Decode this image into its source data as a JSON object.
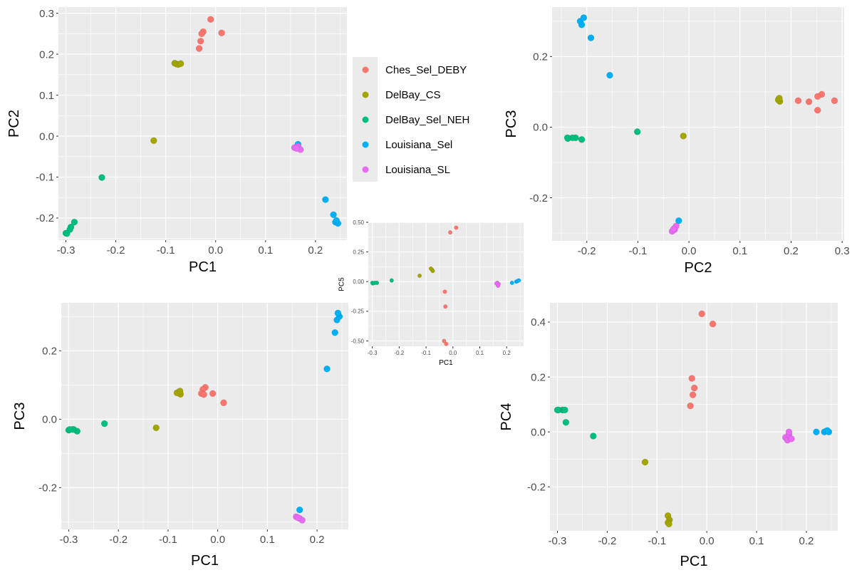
{
  "legend": {
    "entries": [
      "Ches_Sel_DEBY",
      "DelBay_CS",
      "DelBay_Sel_NEH",
      "Louisiana_Sel",
      "Louisiana_SL"
    ]
  },
  "colors": {
    "Ches_Sel_DEBY": "#F8766D",
    "DelBay_CS": "#A3A500",
    "DelBay_Sel_NEH": "#00BF7D",
    "Louisiana_Sel": "#00B0F6",
    "Louisiana_SL": "#E76BF3",
    "panel_bg": "#EBEBEB",
    "grid": "#FFFFFF"
  },
  "chart_data": [
    {
      "id": "pc1-pc2",
      "type": "scatter",
      "xlabel": "PC1",
      "ylabel": "PC2",
      "xlim": [
        -0.315,
        0.263
      ],
      "ylim": [
        -0.254,
        0.315
      ],
      "xticks": [
        -0.3,
        -0.2,
        -0.1,
        0.0,
        0.1,
        0.2
      ],
      "xtick_labels": [
        "-0.3",
        "-0.2",
        "-0.1",
        "0.0",
        "0.1",
        "0.2"
      ],
      "yticks": [
        -0.2,
        -0.1,
        0.0,
        0.1,
        0.2,
        0.3
      ],
      "ytick_labels": [
        "-0.2",
        "-0.1",
        "0.0",
        "0.1",
        "0.2",
        "0.3"
      ],
      "grid": true,
      "series": [
        {
          "name": "Ches_Sel_DEBY",
          "points": [
            [
              -0.01,
              0.285
            ],
            [
              0.012,
              0.252
            ],
            [
              -0.025,
              0.255
            ],
            [
              -0.028,
              0.25
            ],
            [
              -0.03,
              0.232
            ],
            [
              -0.033,
              0.214
            ]
          ]
        },
        {
          "name": "DelBay_CS",
          "points": [
            [
              -0.082,
              0.178
            ],
            [
              -0.078,
              0.176
            ],
            [
              -0.075,
              0.175
            ],
            [
              -0.07,
              0.177
            ],
            [
              -0.124,
              -0.011
            ]
          ]
        },
        {
          "name": "DelBay_Sel_NEH",
          "points": [
            [
              -0.228,
              -0.101
            ],
            [
              -0.283,
              -0.21
            ],
            [
              -0.29,
              -0.222
            ],
            [
              -0.292,
              -0.228
            ],
            [
              -0.3,
              -0.237
            ],
            [
              -0.298,
              -0.238
            ]
          ]
        },
        {
          "name": "Louisiana_Sel",
          "points": [
            [
              0.22,
              -0.155
            ],
            [
              0.236,
              -0.192
            ],
            [
              0.24,
              -0.21
            ],
            [
              0.245,
              -0.213
            ],
            [
              0.242,
              -0.206
            ],
            [
              0.165,
              -0.02
            ]
          ]
        },
        {
          "name": "Louisiana_SL",
          "points": [
            [
              0.158,
              -0.028
            ],
            [
              0.165,
              -0.025
            ],
            [
              0.17,
              -0.033
            ],
            [
              0.162,
              -0.03
            ]
          ]
        }
      ]
    },
    {
      "id": "pc2-pc3",
      "type": "scatter",
      "xlabel": "PC2",
      "ylabel": "PC3",
      "xlim": [
        -0.268,
        0.304
      ],
      "ylim": [
        -0.322,
        0.34
      ],
      "xticks": [
        -0.2,
        -0.1,
        0.0,
        0.1,
        0.2,
        0.3
      ],
      "xtick_labels": [
        "-0.2",
        "-0.1",
        "0.0",
        "0.1",
        "0.2",
        "0.3"
      ],
      "yticks": [
        -0.2,
        0.0,
        0.2
      ],
      "ytick_labels": [
        "-0.2",
        "0.0",
        "0.2"
      ],
      "grid": true,
      "series": [
        {
          "name": "Ches_Sel_DEBY",
          "points": [
            [
              0.285,
              0.075
            ],
            [
              0.26,
              0.093
            ],
            [
              0.252,
              0.087
            ],
            [
              0.235,
              0.072
            ],
            [
              0.214,
              0.075
            ],
            [
              0.252,
              0.048
            ]
          ]
        },
        {
          "name": "DelBay_CS",
          "points": [
            [
              0.176,
              0.08
            ],
            [
              0.178,
              0.073
            ],
            [
              0.175,
              0.077
            ],
            [
              0.177,
              0.082
            ],
            [
              -0.011,
              -0.025
            ]
          ]
        },
        {
          "name": "DelBay_Sel_NEH",
          "points": [
            [
              -0.101,
              -0.013
            ],
            [
              -0.21,
              -0.035
            ],
            [
              -0.222,
              -0.03
            ],
            [
              -0.228,
              -0.03
            ],
            [
              -0.237,
              -0.032
            ],
            [
              -0.238,
              -0.03
            ]
          ]
        },
        {
          "name": "Louisiana_Sel",
          "points": [
            [
              -0.155,
              0.147
            ],
            [
              -0.192,
              0.253
            ],
            [
              -0.21,
              0.29
            ],
            [
              -0.213,
              0.3
            ],
            [
              -0.206,
              0.31
            ],
            [
              -0.02,
              -0.265
            ]
          ]
        },
        {
          "name": "Louisiana_SL",
          "points": [
            [
              -0.028,
              -0.29
            ],
            [
              -0.025,
              -0.28
            ],
            [
              -0.033,
              -0.295
            ],
            [
              -0.03,
              -0.288
            ]
          ]
        }
      ]
    },
    {
      "id": "pc1-pc5",
      "type": "scatter",
      "xlabel": "PC1",
      "ylabel": "PC5",
      "xlim": [
        -0.315,
        0.263
      ],
      "ylim": [
        -0.545,
        0.5
      ],
      "xticks": [
        -0.3,
        -0.2,
        -0.1,
        0.0,
        0.1,
        0.2
      ],
      "xtick_labels": [
        "-0.3",
        "-0.2",
        "-0.1",
        "0.0",
        "0.1",
        "0.2"
      ],
      "yticks": [
        -0.5,
        -0.25,
        0.0,
        0.25,
        0.5
      ],
      "ytick_labels": [
        "-0.50",
        "-0.25",
        "0.00",
        "0.25",
        "0.50"
      ],
      "grid": true,
      "series": [
        {
          "name": "Ches_Sel_DEBY",
          "points": [
            [
              0.012,
              0.455
            ],
            [
              -0.01,
              0.415
            ],
            [
              -0.03,
              -0.085
            ],
            [
              -0.028,
              -0.21
            ],
            [
              -0.033,
              -0.5
            ],
            [
              -0.025,
              -0.525
            ]
          ]
        },
        {
          "name": "DelBay_CS",
          "points": [
            [
              -0.078,
              0.1
            ],
            [
              -0.075,
              0.09
            ],
            [
              -0.082,
              0.11
            ],
            [
              -0.124,
              0.05
            ]
          ]
        },
        {
          "name": "DelBay_Sel_NEH",
          "points": [
            [
              -0.228,
              0.01
            ],
            [
              -0.283,
              -0.01
            ],
            [
              -0.29,
              -0.01
            ],
            [
              -0.298,
              -0.015
            ],
            [
              -0.3,
              -0.01
            ]
          ]
        },
        {
          "name": "Louisiana_Sel",
          "points": [
            [
              0.22,
              -0.01
            ],
            [
              0.236,
              0.0
            ],
            [
              0.24,
              0.005
            ],
            [
              0.245,
              0.01
            ]
          ]
        },
        {
          "name": "Louisiana_SL",
          "points": [
            [
              0.165,
              -0.01
            ],
            [
              0.17,
              -0.02
            ],
            [
              0.162,
              -0.015
            ],
            [
              0.168,
              -0.035
            ]
          ]
        }
      ]
    },
    {
      "id": "pc1-pc3",
      "type": "scatter",
      "xlabel": "PC1",
      "ylabel": "PC3",
      "xlim": [
        -0.315,
        0.263
      ],
      "ylim": [
        -0.322,
        0.34
      ],
      "xticks": [
        -0.3,
        -0.2,
        -0.1,
        0.0,
        0.1,
        0.2
      ],
      "xtick_labels": [
        "-0.3",
        "-0.2",
        "-0.1",
        "0.0",
        "0.1",
        "0.2"
      ],
      "yticks": [
        -0.2,
        0.0,
        0.2
      ],
      "ytick_labels": [
        "-0.2",
        "0.0",
        "0.2"
      ],
      "grid": true,
      "series": [
        {
          "name": "Ches_Sel_DEBY",
          "points": [
            [
              -0.025,
              0.093
            ],
            [
              -0.03,
              0.087
            ],
            [
              -0.033,
              0.075
            ],
            [
              -0.028,
              0.072
            ],
            [
              -0.01,
              0.075
            ],
            [
              0.012,
              0.048
            ]
          ]
        },
        {
          "name": "DelBay_CS",
          "points": [
            [
              -0.078,
              0.08
            ],
            [
              -0.075,
              0.073
            ],
            [
              -0.082,
              0.077
            ],
            [
              -0.076,
              0.082
            ],
            [
              -0.124,
              -0.025
            ]
          ]
        },
        {
          "name": "DelBay_Sel_NEH",
          "points": [
            [
              -0.228,
              -0.013
            ],
            [
              -0.283,
              -0.035
            ],
            [
              -0.29,
              -0.03
            ],
            [
              -0.292,
              -0.03
            ],
            [
              -0.3,
              -0.032
            ],
            [
              -0.298,
              -0.03
            ]
          ]
        },
        {
          "name": "Louisiana_Sel",
          "points": [
            [
              0.22,
              0.147
            ],
            [
              0.236,
              0.253
            ],
            [
              0.24,
              0.29
            ],
            [
              0.245,
              0.3
            ],
            [
              0.242,
              0.31
            ],
            [
              0.165,
              -0.265
            ]
          ]
        },
        {
          "name": "Louisiana_SL",
          "points": [
            [
              0.158,
              -0.285
            ],
            [
              0.165,
              -0.29
            ],
            [
              0.17,
              -0.295
            ],
            [
              0.162,
              -0.288
            ]
          ]
        }
      ]
    },
    {
      "id": "pc1-pc4",
      "type": "scatter",
      "xlabel": "PC1",
      "ylabel": "PC4",
      "xlim": [
        -0.315,
        0.263
      ],
      "ylim": [
        -0.36,
        0.47
      ],
      "xticks": [
        -0.3,
        -0.2,
        -0.1,
        0.0,
        0.1,
        0.2
      ],
      "xtick_labels": [
        "-0.3",
        "-0.2",
        "-0.1",
        "0.0",
        "0.1",
        "0.2"
      ],
      "yticks": [
        -0.2,
        0.0,
        0.2,
        0.4
      ],
      "ytick_labels": [
        "-0.2",
        "0.0",
        "0.2",
        "0.4"
      ],
      "grid": true,
      "series": [
        {
          "name": "Ches_Sel_DEBY",
          "points": [
            [
              -0.01,
              0.43
            ],
            [
              0.012,
              0.393
            ],
            [
              -0.03,
              0.195
            ],
            [
              -0.025,
              0.16
            ],
            [
              -0.028,
              0.135
            ],
            [
              -0.033,
              0.095
            ]
          ]
        },
        {
          "name": "DelBay_CS",
          "points": [
            [
              -0.124,
              -0.11
            ],
            [
              -0.078,
              -0.305
            ],
            [
              -0.075,
              -0.32
            ],
            [
              -0.078,
              -0.33
            ],
            [
              -0.076,
              -0.335
            ]
          ]
        },
        {
          "name": "DelBay_Sel_NEH",
          "points": [
            [
              -0.228,
              -0.015
            ],
            [
              -0.283,
              0.035
            ],
            [
              -0.29,
              0.08
            ],
            [
              -0.298,
              0.08
            ],
            [
              -0.3,
              0.08
            ],
            [
              -0.285,
              0.08
            ]
          ]
        },
        {
          "name": "Louisiana_Sel",
          "points": [
            [
              0.22,
              0.0
            ],
            [
              0.236,
              0.0
            ],
            [
              0.24,
              0.003
            ],
            [
              0.245,
              0.0
            ],
            [
              0.242,
              0.005
            ]
          ]
        },
        {
          "name": "Louisiana_SL",
          "points": [
            [
              0.158,
              -0.02
            ],
            [
              0.162,
              -0.03
            ],
            [
              0.165,
              -0.01
            ],
            [
              0.17,
              -0.025
            ],
            [
              0.165,
              0.0
            ]
          ]
        }
      ]
    }
  ]
}
